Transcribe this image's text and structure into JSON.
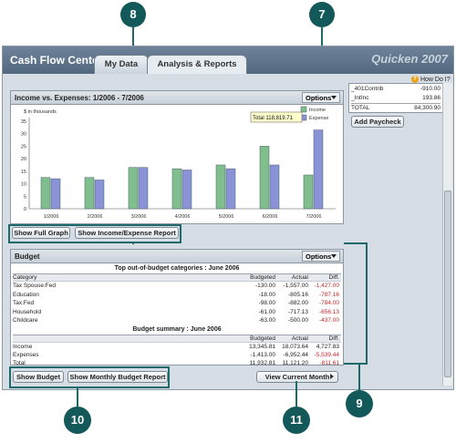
{
  "app": {
    "title": "Cash Flow Center",
    "brand": "Quicken 2007"
  },
  "tabs": [
    {
      "label": "My Data"
    },
    {
      "label": "Analysis & Reports"
    }
  ],
  "callouts": {
    "c7": "7",
    "c8": "8",
    "c9": "9",
    "c10": "10",
    "c11": "11"
  },
  "how_do_i": "How Do I?",
  "right_panel": {
    "rows": [
      {
        "label": "_401Contrib",
        "value": "-910.00"
      },
      {
        "label": "_IntInc",
        "value": "193.86"
      },
      {
        "label": "TOTAL",
        "value": "84,300.90"
      }
    ],
    "add_paycheck": "Add Paycheck"
  },
  "income_panel": {
    "title": "Income vs. Expenses:  1/2006 - 7/2006",
    "options": "Options",
    "show_full_graph": "Show Full Graph",
    "show_report": "Show Income/Expense Report",
    "tooltip": "Total 118,819.71"
  },
  "chart_data": {
    "type": "bar",
    "title": "Income vs. Expenses:  1/2006 - 7/2006",
    "ylabel": "$ in thousands",
    "categories": [
      "1/2006",
      "2/2006",
      "3/2006",
      "4/2006",
      "5/2006",
      "6/2006",
      "7/2006"
    ],
    "series": [
      {
        "name": "Income",
        "color": "#7fbf8e",
        "values": [
          12.5,
          12.5,
          16.5,
          16,
          17.5,
          25,
          13.5
        ]
      },
      {
        "name": "Expense",
        "color": "#8a93d6",
        "values": [
          12,
          11.5,
          16.5,
          15.5,
          16,
          17.5,
          31.5
        ]
      }
    ],
    "yticks": [
      0,
      5,
      10,
      15,
      20,
      25,
      30,
      35
    ],
    "ylim": [
      0,
      35
    ],
    "legend": "top-right",
    "grid": false
  },
  "budget": {
    "title": "Budget",
    "options": "Options",
    "top_title": "Top out-of-budget categories : June 2006",
    "col_category": "Category",
    "col_budgeted": "Budgeted",
    "col_actual": "Actual",
    "col_diff": "Diff.",
    "rows": [
      {
        "category": "Tax Spouse:Fed",
        "budgeted": "-130.00",
        "actual": "-1,557.00",
        "diff": "-1,427.00"
      },
      {
        "category": "Education",
        "budgeted": "-18.00",
        "actual": "-805.16",
        "diff": "-787.16"
      },
      {
        "category": "Tax:Fed",
        "budgeted": "-98.00",
        "actual": "-882.00",
        "diff": "-784.00"
      },
      {
        "category": "Household",
        "budgeted": "-61.00",
        "actual": "-717.13",
        "diff": "-656.13"
      },
      {
        "category": "Childcare",
        "budgeted": "-63.00",
        "actual": "-500.00",
        "diff": "-437.00"
      }
    ],
    "summary_title": "Budget summary : June 2006",
    "summary_rows": [
      {
        "category": "Income",
        "budgeted": "13,345.81",
        "actual": "18,073.64",
        "diff": "4,727.83",
        "neg": false
      },
      {
        "category": "Expenses",
        "budgeted": "-1,413.00",
        "actual": "-6,952.44",
        "diff": "-5,539.44",
        "neg": true
      },
      {
        "category": "Total",
        "budgeted": "11,932.81",
        "actual": "11,121.20",
        "diff": "-811.61",
        "neg": true
      }
    ],
    "show_budget": "Show Budget",
    "show_monthly": "Show Monthly Budget Report",
    "view_current": "View Current Month"
  }
}
